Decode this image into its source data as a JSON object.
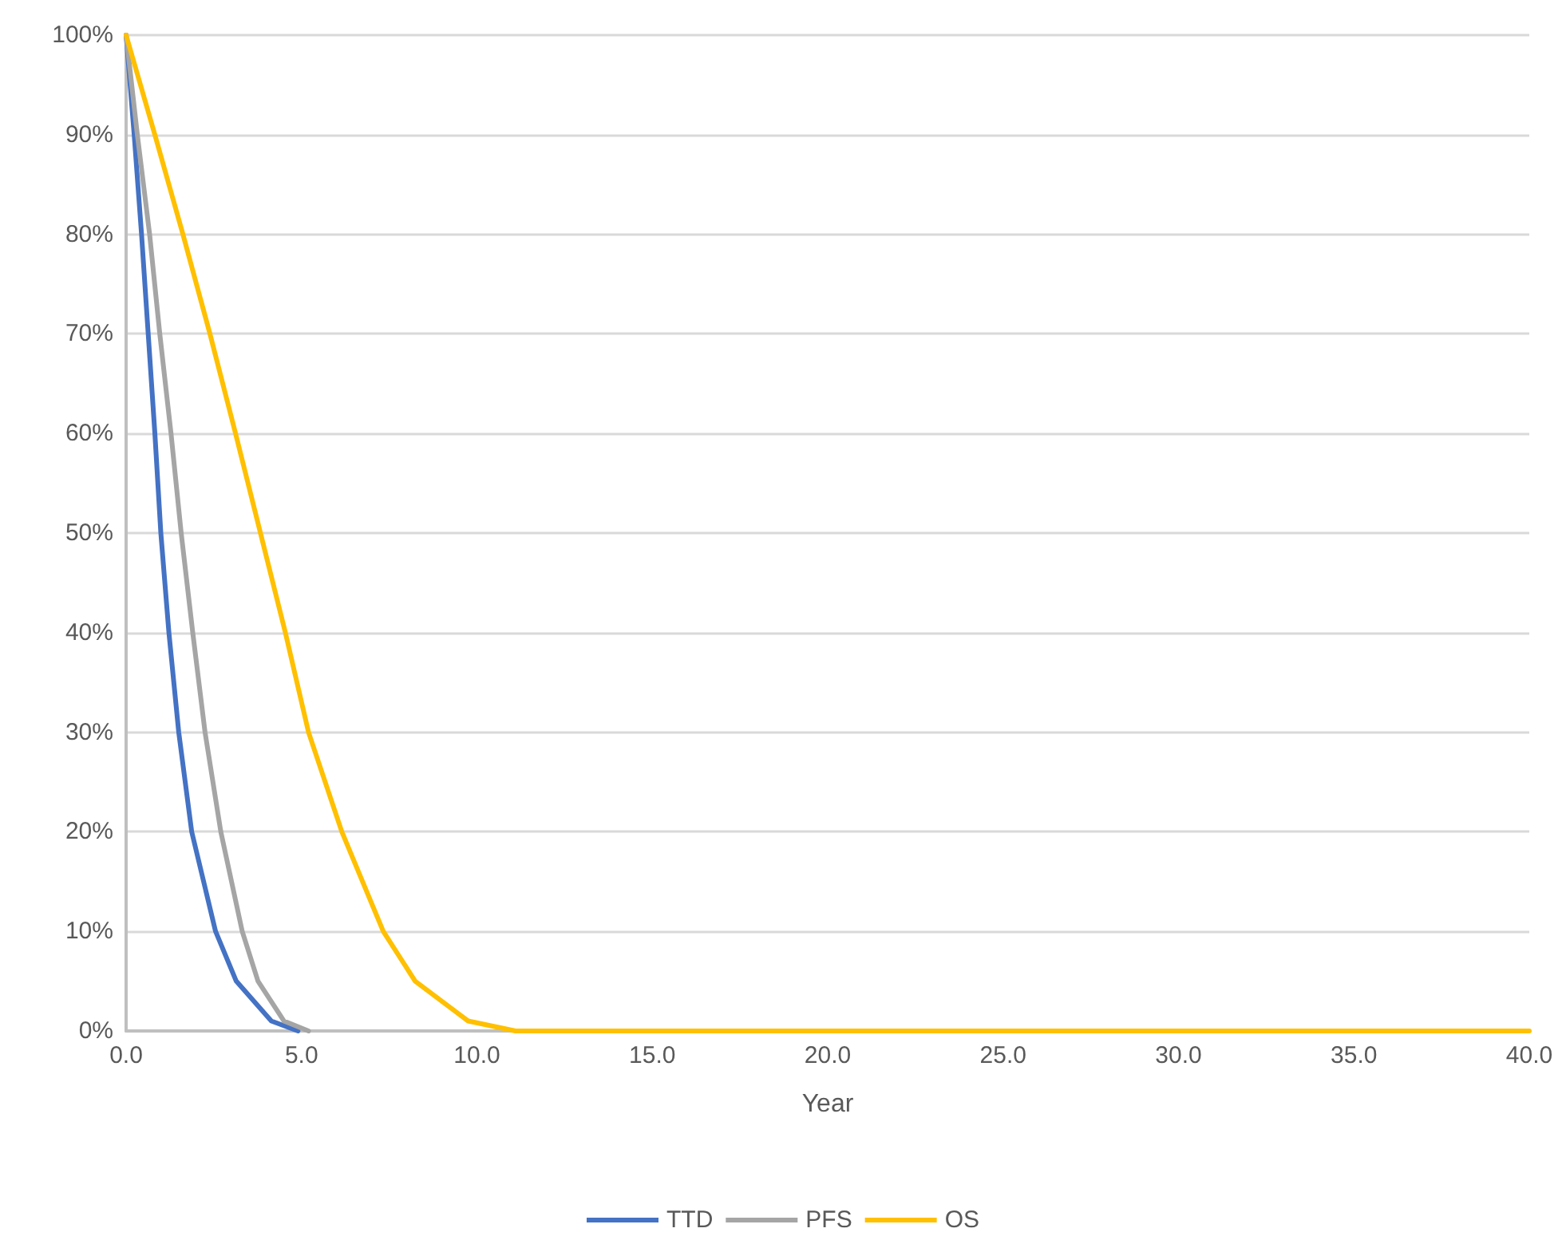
{
  "chart_data": {
    "type": "line",
    "xlabel": "Year",
    "xlim": [
      0,
      40
    ],
    "xticks": [
      {
        "value": 0,
        "label": "0.0"
      },
      {
        "value": 5,
        "label": "5.0"
      },
      {
        "value": 10,
        "label": "10.0"
      },
      {
        "value": 15,
        "label": "15.0"
      },
      {
        "value": 20,
        "label": "20.0"
      },
      {
        "value": 25,
        "label": "25.0"
      },
      {
        "value": 30,
        "label": "30.0"
      },
      {
        "value": 35,
        "label": "35.0"
      },
      {
        "value": 40,
        "label": "40.0"
      }
    ],
    "ylim": [
      0,
      100
    ],
    "yticks": [
      {
        "value": 0,
        "label": "0%"
      },
      {
        "value": 10,
        "label": "10%"
      },
      {
        "value": 20,
        "label": "20%"
      },
      {
        "value": 30,
        "label": "30%"
      },
      {
        "value": 40,
        "label": "40%"
      },
      {
        "value": 50,
        "label": "50%"
      },
      {
        "value": 60,
        "label": "60%"
      },
      {
        "value": 70,
        "label": "70%"
      },
      {
        "value": 80,
        "label": "80%"
      },
      {
        "value": 90,
        "label": "90%"
      },
      {
        "value": 100,
        "label": "100%"
      }
    ],
    "grid": "y",
    "legend": "bottom",
    "marker": "none",
    "line_style": "solid",
    "series": [
      {
        "name": "TTD",
        "color": "#4472c4",
        "x": [
          0,
          0.23,
          0.44,
          0.63,
          0.82,
          0.99,
          1.22,
          1.5,
          1.87,
          2.55,
          3.14,
          4.14,
          4.9
        ],
        "values": [
          100,
          90,
          80,
          70,
          60,
          50,
          40,
          30,
          20,
          10,
          5,
          1,
          0
        ]
      },
      {
        "name": "PFS",
        "color": "#a5a5a5",
        "x": [
          0,
          0.32,
          0.67,
          0.96,
          1.28,
          1.57,
          1.9,
          2.25,
          2.7,
          3.31,
          3.76,
          4.5,
          5.2
        ],
        "values": [
          100,
          90,
          80,
          70,
          60,
          50,
          40,
          30,
          20,
          10,
          5,
          1,
          0
        ]
      },
      {
        "name": "OS",
        "color": "#ffc000",
        "x": [
          0,
          0.82,
          1.62,
          2.39,
          3.12,
          3.83,
          4.54,
          5.2,
          6.15,
          7.33,
          8.24,
          9.75,
          11.1,
          40
        ],
        "values": [
          100,
          90,
          80,
          70,
          60,
          50,
          40,
          30,
          20,
          10,
          5,
          1,
          0,
          0
        ]
      }
    ]
  }
}
